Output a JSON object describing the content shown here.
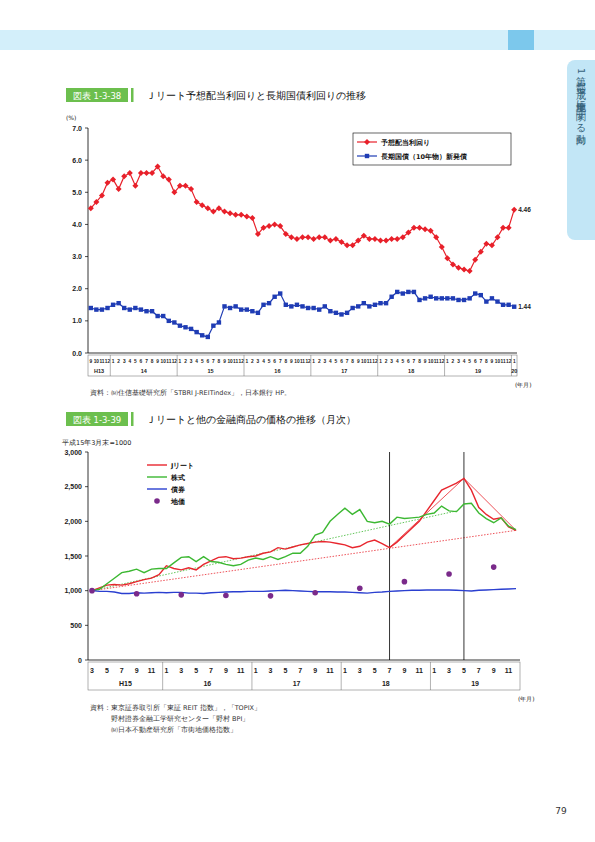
{
  "page": {
    "side_tab": [
      "第1部",
      "平成19年度土地に関する動向"
    ],
    "page_number": "79"
  },
  "chart_data": [
    {
      "type": "line",
      "figure_number": "図表 1-3-38",
      "title": "Ｊリート予想配当利回りと長期国債利回りの推移",
      "y_label": "(%)",
      "x_label": "(年月)",
      "categories": [
        "9",
        "10",
        "11",
        "12",
        "1",
        "2",
        "3",
        "4",
        "5",
        "6",
        "7",
        "8",
        "9",
        "10",
        "11",
        "12",
        "1",
        "2",
        "3",
        "4",
        "5",
        "6",
        "7",
        "8",
        "9",
        "10",
        "11",
        "12",
        "1",
        "2",
        "3",
        "4",
        "5",
        "6",
        "7",
        "8",
        "9",
        "10",
        "11",
        "12",
        "1",
        "2",
        "3",
        "4",
        "5",
        "6",
        "7",
        "8",
        "9",
        "10",
        "11",
        "12",
        "1",
        "2",
        "3",
        "4",
        "5",
        "6",
        "7",
        "8",
        "9",
        "10",
        "11",
        "12",
        "1",
        "2",
        "3",
        "4",
        "5",
        "6",
        "7",
        "8",
        "9",
        "10",
        "11",
        "12",
        "1"
      ],
      "x_groups": [
        {
          "label": "H13",
          "start": 0,
          "end": 3
        },
        {
          "label": "14",
          "start": 4,
          "end": 15
        },
        {
          "label": "15",
          "start": 16,
          "end": 27
        },
        {
          "label": "16",
          "start": 28,
          "end": 39
        },
        {
          "label": "17",
          "start": 40,
          "end": 51
        },
        {
          "label": "18",
          "start": 52,
          "end": 63
        },
        {
          "label": "19",
          "start": 64,
          "end": 75
        },
        {
          "label": "20",
          "start": 76,
          "end": 76
        }
      ],
      "ylim": [
        0,
        7
      ],
      "yticks": [
        {
          "value": 0,
          "label": "0.0"
        },
        {
          "value": 1,
          "label": "1.0"
        },
        {
          "value": 2,
          "label": "2.0"
        },
        {
          "value": 3,
          "label": "3.0"
        },
        {
          "value": 4,
          "label": "4.0"
        },
        {
          "value": 5,
          "label": "5.0"
        },
        {
          "value": 6,
          "label": "6.0"
        },
        {
          "value": 7,
          "label": "7.0"
        }
      ],
      "grid": false,
      "legend": "upper right",
      "series": [
        {
          "name": "予想配当利回り",
          "color": "#e8202a",
          "marker": "diamond",
          "values": [
            4.5,
            4.7,
            4.9,
            5.3,
            5.4,
            5.1,
            5.5,
            5.6,
            5.2,
            5.6,
            5.6,
            5.6,
            5.8,
            5.5,
            5.4,
            5.0,
            5.2,
            5.2,
            5.1,
            4.7,
            4.6,
            4.5,
            4.4,
            4.5,
            4.4,
            4.35,
            4.3,
            4.3,
            4.25,
            4.2,
            3.7,
            3.9,
            3.95,
            4.0,
            3.95,
            3.7,
            3.6,
            3.55,
            3.6,
            3.6,
            3.55,
            3.6,
            3.6,
            3.5,
            3.55,
            3.45,
            3.35,
            3.35,
            3.5,
            3.65,
            3.55,
            3.55,
            3.5,
            3.5,
            3.55,
            3.55,
            3.6,
            3.75,
            3.9,
            3.9,
            3.85,
            3.8,
            3.6,
            3.3,
            2.95,
            2.75,
            2.65,
            2.6,
            2.55,
            2.9,
            3.15,
            3.4,
            3.35,
            3.6,
            3.9,
            3.9,
            4.46
          ],
          "value_labels": [
            null,
            null,
            null,
            null,
            null,
            null,
            null,
            null,
            null,
            null,
            null,
            null,
            null,
            null,
            null,
            null,
            null,
            null,
            null,
            null,
            null,
            null,
            null,
            null,
            null,
            null,
            null,
            null,
            null,
            null,
            null,
            null,
            null,
            null,
            null,
            null,
            null,
            null,
            null,
            null,
            null,
            null,
            null,
            null,
            null,
            null,
            null,
            null,
            null,
            null,
            null,
            null,
            null,
            null,
            null,
            null,
            null,
            null,
            null,
            null,
            null,
            null,
            null,
            null,
            null,
            null,
            null,
            null,
            null,
            null,
            null,
            null,
            null,
            null,
            null,
            null,
            "4.46"
          ]
        },
        {
          "name": "長期国債（10年物）新発債",
          "color": "#1f3cb4",
          "marker": "square",
          "values": [
            1.4,
            1.35,
            1.35,
            1.4,
            1.5,
            1.55,
            1.4,
            1.35,
            1.4,
            1.35,
            1.3,
            1.3,
            1.15,
            1.15,
            1.0,
            0.95,
            0.85,
            0.8,
            0.75,
            0.65,
            0.55,
            0.5,
            0.85,
            0.95,
            1.45,
            1.4,
            1.45,
            1.35,
            1.35,
            1.3,
            1.25,
            1.5,
            1.55,
            1.75,
            1.85,
            1.5,
            1.45,
            1.5,
            1.45,
            1.4,
            1.4,
            1.35,
            1.45,
            1.3,
            1.25,
            1.2,
            1.25,
            1.4,
            1.45,
            1.55,
            1.45,
            1.5,
            1.55,
            1.55,
            1.75,
            1.9,
            1.85,
            1.9,
            1.9,
            1.65,
            1.7,
            1.75,
            1.7,
            1.7,
            1.7,
            1.7,
            1.65,
            1.65,
            1.7,
            1.85,
            1.8,
            1.6,
            1.7,
            1.6,
            1.5,
            1.5,
            1.44
          ],
          "value_labels": [
            null,
            null,
            null,
            null,
            null,
            null,
            null,
            null,
            null,
            null,
            null,
            null,
            null,
            null,
            null,
            null,
            null,
            null,
            null,
            null,
            null,
            null,
            null,
            null,
            null,
            null,
            null,
            null,
            null,
            null,
            null,
            null,
            null,
            null,
            null,
            null,
            null,
            null,
            null,
            null,
            null,
            null,
            null,
            null,
            null,
            null,
            null,
            null,
            null,
            null,
            null,
            null,
            null,
            null,
            null,
            null,
            null,
            null,
            null,
            null,
            null,
            null,
            null,
            null,
            null,
            null,
            null,
            null,
            null,
            null,
            null,
            null,
            null,
            null,
            null,
            null,
            "1.44"
          ]
        }
      ],
      "source": [
        "資料：㈶住信基礎研究所「STBRI J-REITindex」，日本銀行 HP。"
      ]
    },
    {
      "type": "line",
      "figure_number": "図表 1-3-39",
      "title": "Ｊリートと他の金融商品の価格の推移（月次）",
      "subtitle": "平成15年3月末=1000",
      "x_label": "(年月)",
      "categories": [
        "3",
        null,
        "5",
        null,
        "7",
        null,
        "9",
        null,
        "11",
        null,
        "1",
        null,
        "3",
        null,
        "5",
        null,
        "7",
        null,
        "9",
        null,
        "11",
        null,
        "1",
        null,
        "3",
        null,
        "5",
        null,
        "7",
        null,
        "9",
        null,
        "11",
        null,
        "1",
        null,
        "3",
        null,
        "5",
        null,
        "7",
        null,
        "9",
        null,
        "11",
        null,
        "1",
        null,
        "3",
        null,
        "5",
        null,
        "7",
        null,
        "9",
        null,
        "11",
        null
      ],
      "x_groups": [
        {
          "label": "H15",
          "start": 0,
          "end": 9
        },
        {
          "label": "16",
          "start": 10,
          "end": 21
        },
        {
          "label": "17",
          "start": 22,
          "end": 33
        },
        {
          "label": "18",
          "start": 34,
          "end": 45
        },
        {
          "label": "19",
          "start": 46,
          "end": 57
        }
      ],
      "ylim": [
        0,
        3000
      ],
      "yticks": [
        0,
        500,
        {
          "value": 1000,
          "label": "1,000"
        },
        {
          "value": 1500,
          "label": "1,500"
        },
        {
          "value": 2000,
          "label": "2,000"
        },
        {
          "value": 2500,
          "label": "2,500"
        },
        {
          "value": 3000,
          "label": "3,000"
        }
      ],
      "grid": false,
      "legend": "upper left",
      "series": [
        {
          "name": "Jリート",
          "color": "#e8262e",
          "values": [
            1000,
            1040,
            1080,
            1090,
            1080,
            1100,
            1130,
            1160,
            1180,
            1230,
            1360,
            1320,
            1300,
            1330,
            1300,
            1380,
            1430,
            1480,
            1490,
            1460,
            1470,
            1490,
            1500,
            1540,
            1560,
            1620,
            1600,
            1630,
            1660,
            1680,
            1700,
            1710,
            1700,
            1680,
            1660,
            1620,
            1640,
            1700,
            1730,
            1680,
            1620,
            1700,
            1800,
            1900,
            2000,
            2150,
            2300,
            2450,
            2500,
            2550,
            2620,
            2450,
            2200,
            2100,
            2030,
            2050,
            1920,
            1870
          ]
        },
        {
          "name": "株式",
          "color": "#3cb832",
          "values": [
            1000,
            1020,
            1100,
            1180,
            1260,
            1280,
            1310,
            1260,
            1310,
            1320,
            1320,
            1400,
            1480,
            1490,
            1420,
            1490,
            1420,
            1410,
            1380,
            1360,
            1380,
            1440,
            1470,
            1450,
            1490,
            1450,
            1490,
            1540,
            1540,
            1640,
            1800,
            1840,
            2000,
            2100,
            2190,
            2100,
            2170,
            2000,
            1980,
            2000,
            1960,
            2060,
            2040,
            2050,
            2060,
            2100,
            2120,
            2220,
            2150,
            2140,
            2250,
            2260,
            2120,
            2040,
            1980,
            2050,
            1930,
            1880
          ]
        },
        {
          "name": "債券",
          "color": "#2a3fd0",
          "values": [
            1000,
            990,
            990,
            980,
            960,
            960,
            970,
            965,
            970,
            975,
            970,
            975,
            975,
            965,
            965,
            960,
            970,
            975,
            980,
            985,
            985,
            990,
            990,
            990,
            995,
            1000,
            1005,
            1000,
            995,
            990,
            985,
            985,
            985,
            980,
            980,
            975,
            970,
            965,
            975,
            980,
            990,
            995,
            1000,
            1005,
            1005,
            1010,
            1010,
            1010,
            1010,
            1005,
            1000,
            995,
            1005,
            1010,
            1015,
            1020,
            1025,
            1030
          ]
        },
        {
          "name": "地価",
          "color": "#7a2a8a",
          "type": "scatter",
          "marker": "circle",
          "values": [
            1000,
            null,
            null,
            null,
            null,
            null,
            955,
            null,
            null,
            null,
            null,
            null,
            940,
            null,
            null,
            null,
            null,
            null,
            930,
            null,
            null,
            null,
            null,
            null,
            925,
            null,
            null,
            null,
            null,
            null,
            970,
            null,
            null,
            null,
            null,
            null,
            1035,
            null,
            null,
            null,
            null,
            null,
            1130,
            null,
            null,
            null,
            null,
            null,
            1240,
            null,
            null,
            null,
            null,
            null,
            1340,
            null,
            null,
            null
          ]
        }
      ],
      "annotations": [
        {
          "type": "trend",
          "color": "#3cb832",
          "line_style": "dotted",
          "x": [
            0,
            49
          ],
          "y": [
            1000,
            2150
          ]
        },
        {
          "type": "trend",
          "color": "#e8262e",
          "line_style": "dotted",
          "x": [
            0,
            57
          ],
          "y": [
            1000,
            1870
          ]
        },
        {
          "type": "trend",
          "color": "#e8262e",
          "line_style": "solid",
          "x": [
            40,
            50,
            57
          ],
          "y": [
            1620,
            2620,
            1870
          ]
        },
        {
          "type": "vline",
          "color": "#000000",
          "x": 40
        },
        {
          "type": "vline",
          "color": "#000000",
          "x": 50
        }
      ],
      "source": [
        "資料：東京証券取引所「東証 REIT 指数」，「TOPIX」",
        "野村證券金融工学研究センター「野村 BPI」",
        "㈶日本不動産研究所「市街地価格指数」"
      ]
    }
  ]
}
